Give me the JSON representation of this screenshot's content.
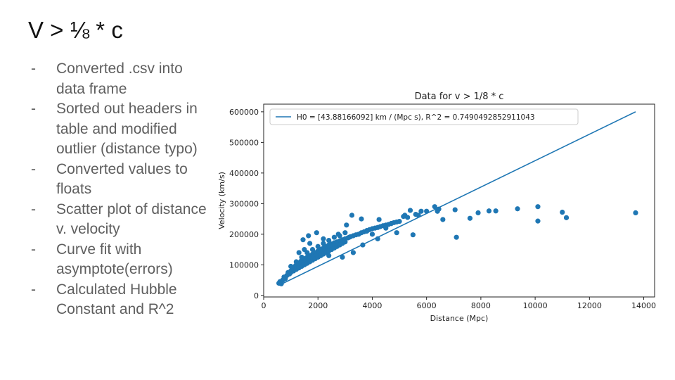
{
  "slide": {
    "title": "V > ⅛ * c",
    "bullets": [
      "Converted .csv into data frame",
      "Sorted out headers in table and modified outlier (distance typo)",
      "Converted values to floats",
      "Scatter plot of distance v. velocity",
      "Curve fit with asymptote(errors)",
      "Calculated Hubble Constant and R^2"
    ],
    "bullet_marker": "-"
  },
  "chart_data": {
    "type": "scatter",
    "title": "Data for v > 1/8 * c",
    "xlabel": "Distance (Mpc)",
    "ylabel": "Velocity (km/s)",
    "xlim": [
      0,
      14400
    ],
    "ylim": [
      -5000,
      625000
    ],
    "xticks": [
      0,
      2000,
      4000,
      6000,
      8000,
      10000,
      12000,
      14000
    ],
    "xtick_labels": [
      "0",
      "2000",
      "4000",
      "6000",
      "8000",
      "10000",
      "12000",
      "14000"
    ],
    "yticks": [
      0,
      100000,
      200000,
      300000,
      400000,
      500000,
      600000
    ],
    "ytick_labels": [
      "0",
      "100000",
      "200000",
      "300000",
      "400000",
      "500000",
      "600000"
    ],
    "grid": false,
    "legend_position": "top-left",
    "point_color": "#1f77b4",
    "line_color": "#1f77b4",
    "fit_line": {
      "name": "H0 = [43.88166092] km / (Mpc s), R^2 = 0.7490492852911043",
      "x": [
        560,
        13700
      ],
      "y": [
        33000,
        600000
      ]
    },
    "series": [
      {
        "x": [
          560,
          600,
          650,
          700,
          750,
          800,
          850,
          900,
          950,
          1000,
          1050,
          1100,
          1150,
          1200,
          1250,
          1300,
          1350,
          1400,
          1450,
          1500,
          1550,
          1600,
          1650,
          1700,
          1750,
          1800,
          1850,
          1900,
          1950,
          2000,
          2050,
          2100,
          2150,
          2200,
          2250,
          2300,
          2350,
          2400,
          2450,
          2500,
          2550,
          2600,
          2650,
          2700,
          2750,
          2800,
          2850,
          2900,
          2950,
          3000,
          3100,
          3200,
          3300,
          3400,
          3500,
          3600,
          3700,
          3800,
          3900,
          4000,
          4100,
          4200,
          4300,
          4400,
          4500,
          4600,
          4700,
          4800,
          4900,
          5000,
          900,
          1000,
          1100,
          1200,
          1300,
          1400,
          1500,
          1600,
          1700,
          1800,
          1900,
          2000,
          2100,
          2200,
          2300,
          2400,
          2500,
          2600,
          2700,
          2800,
          2900,
          3000,
          1000,
          1200,
          1400,
          1600,
          1800,
          2000,
          2200,
          2400,
          2600,
          2800,
          3000,
          1450,
          1500,
          1300,
          1650,
          1950,
          2200,
          2750,
          3050,
          3250,
          3150,
          3600,
          3800,
          4000,
          4250,
          4500,
          4700,
          5150,
          5600,
          6000,
          6300,
          6450,
          7100,
          1700,
          2400,
          2900,
          3300,
          3650,
          4200,
          4900,
          5500,
          5200,
          5400,
          5800,
          6600,
          7600,
          7900,
          8300,
          8550,
          9350,
          10100,
          11000,
          11150,
          13700,
          10100,
          7050,
          6400,
          5700,
          5300
        ],
        "y": [
          40000,
          45000,
          38000,
          50000,
          60000,
          55000,
          65000,
          75000,
          70000,
          80000,
          90000,
          85000,
          95000,
          100000,
          105000,
          98000,
          110000,
          115000,
          108000,
          120000,
          112000,
          125000,
          118000,
          130000,
          122000,
          135000,
          128000,
          140000,
          132000,
          145000,
          138000,
          150000,
          142000,
          155000,
          148000,
          160000,
          152000,
          165000,
          158000,
          168000,
          162000,
          172000,
          165000,
          175000,
          170000,
          178000,
          172000,
          182000,
          176000,
          185000,
          188000,
          192000,
          195000,
          198000,
          200000,
          205000,
          208000,
          212000,
          215000,
          218000,
          220000,
          222000,
          225000,
          228000,
          230000,
          232000,
          235000,
          238000,
          240000,
          242000,
          70000,
          75000,
          80000,
          85000,
          90000,
          95000,
          100000,
          105000,
          110000,
          115000,
          120000,
          125000,
          130000,
          135000,
          140000,
          145000,
          150000,
          155000,
          160000,
          165000,
          170000,
          175000,
          95000,
          110000,
          125000,
          140000,
          150000,
          160000,
          170000,
          180000,
          190000,
          195000,
          205000,
          182000,
          150000,
          140000,
          195000,
          205000,
          185000,
          200000,
          230000,
          262000,
          190000,
          250000,
          210000,
          200000,
          248000,
          220000,
          235000,
          258000,
          265000,
          275000,
          290000,
          282000,
          190000,
          170000,
          130000,
          125000,
          140000,
          165000,
          185000,
          205000,
          198000,
          262000,
          278000,
          275000,
          248000,
          252000,
          270000,
          276000,
          276000,
          283000,
          290000,
          272000,
          254000,
          270000,
          243000,
          280000,
          275000,
          262000,
          255000
        ]
      }
    ]
  }
}
